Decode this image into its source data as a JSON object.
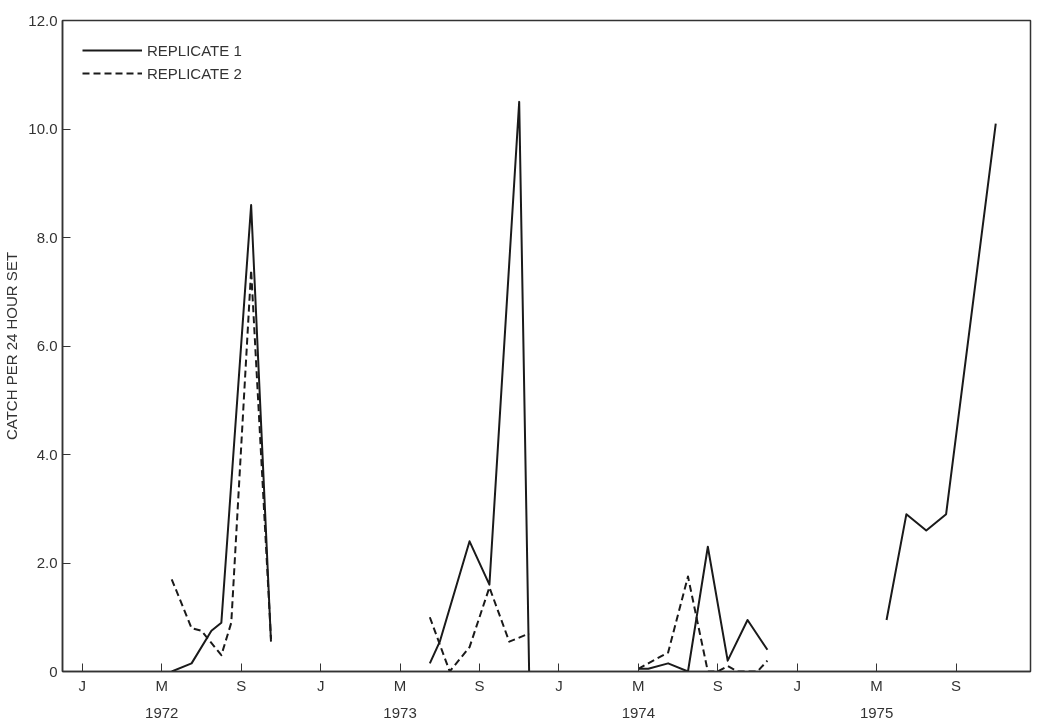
{
  "chart_data": {
    "type": "line",
    "ylabel": "CATCH PER 24 HOUR SET",
    "ylim": [
      0,
      12
    ],
    "categories": [
      "J",
      null,
      null,
      null,
      null,
      null,
      null,
      null,
      "M",
      null,
      null,
      null,
      null,
      null,
      null,
      null,
      "S",
      null,
      null,
      null,
      null,
      null,
      null,
      null,
      "J",
      null,
      null,
      null,
      null,
      null,
      null,
      null,
      "M",
      null,
      null,
      null,
      null,
      null,
      null,
      null,
      "S",
      null,
      null,
      null,
      null,
      null,
      null,
      null,
      "J",
      null,
      null,
      null,
      null,
      null,
      null,
      null,
      "M",
      null,
      null,
      null,
      null,
      null,
      null,
      null,
      "S",
      null,
      null,
      null,
      null,
      null,
      null,
      null,
      "J",
      null,
      null,
      null,
      null,
      null,
      null,
      null,
      "M",
      null,
      null,
      null,
      null,
      null,
      null,
      null,
      "S",
      null,
      null,
      null,
      null,
      null,
      null,
      null
    ],
    "yticks": [
      0,
      {
        "value": 2,
        "label": "2.0"
      },
      {
        "value": 4,
        "label": "4.0"
      },
      {
        "value": 6,
        "label": "6.0"
      },
      {
        "value": 8,
        "label": "8.0"
      },
      {
        "value": 10,
        "label": "10.0"
      },
      {
        "value": 12,
        "label": "12.0"
      }
    ],
    "annotations": [
      "1972",
      "1973",
      "1974",
      "1975"
    ],
    "grid": false,
    "legend": "top left",
    "series": [
      {
        "name": "REPLICATE 1",
        "color": "#1a1a1a",
        "line_style": "solid",
        "values": [
          null,
          null,
          null,
          null,
          null,
          null,
          null,
          null,
          null,
          0,
          null,
          0.15,
          null,
          0.75,
          0.9,
          null,
          null,
          8.6,
          null,
          0.55,
          null,
          null,
          null,
          null,
          null,
          null,
          null,
          null,
          null,
          null,
          null,
          null,
          null,
          null,
          null,
          null,
          null,
          null,
          null,
          null,
          null,
          null,
          null,
          null,
          null,
          null,
          null,
          null,
          null,
          null,
          null,
          null,
          null,
          null,
          null,
          null,
          null,
          null,
          null,
          null,
          null,
          null,
          null,
          null,
          null,
          null,
          null,
          null,
          null,
          null,
          null,
          null,
          null,
          null,
          null,
          null,
          null,
          null,
          null,
          null,
          null,
          null,
          null,
          null,
          null,
          null,
          null,
          null,
          null,
          null,
          null,
          null,
          null,
          null,
          null,
          null
        ]
      },
      {
        "color": "#1a1a1a",
        "line_style": "solid",
        "values": [
          null,
          null,
          null,
          null,
          null,
          null,
          null,
          null,
          null,
          null,
          null,
          null,
          null,
          null,
          null,
          null,
          null,
          null,
          null,
          null,
          null,
          null,
          null,
          null,
          null,
          null,
          null,
          null,
          null,
          null,
          null,
          null,
          null,
          null,
          null,
          0.15,
          0.55,
          null,
          null,
          2.4,
          null,
          1.6,
          null,
          null,
          10.5,
          0,
          null,
          null,
          null,
          null,
          null,
          null,
          null,
          null,
          null,
          null,
          null,
          null,
          null,
          null,
          null,
          null,
          null,
          null,
          null,
          null,
          null,
          null,
          null,
          null,
          null,
          null,
          null,
          null,
          null,
          null,
          null,
          null,
          null,
          null,
          null,
          null,
          null,
          null,
          null,
          null,
          null,
          null,
          null,
          null,
          null,
          null,
          null,
          null,
          null,
          null
        ]
      },
      {
        "color": "#1a1a1a",
        "line_style": "solid",
        "values": [
          null,
          null,
          null,
          null,
          null,
          null,
          null,
          null,
          null,
          null,
          null,
          null,
          null,
          null,
          null,
          null,
          null,
          null,
          null,
          null,
          null,
          null,
          null,
          null,
          null,
          null,
          null,
          null,
          null,
          null,
          null,
          null,
          null,
          null,
          null,
          null,
          null,
          null,
          null,
          null,
          null,
          null,
          null,
          null,
          null,
          null,
          null,
          null,
          null,
          null,
          null,
          null,
          null,
          null,
          null,
          null,
          0.05,
          0.05,
          null,
          0.15,
          null,
          0,
          null,
          2.3,
          null,
          0.2,
          null,
          0.95,
          null,
          0.4,
          null,
          null,
          null,
          null,
          null,
          null,
          null,
          null,
          null,
          null,
          null,
          null,
          null,
          null,
          null,
          null,
          null,
          null,
          null,
          null,
          null,
          null,
          null,
          null,
          null,
          null
        ]
      },
      {
        "color": "#1a1a1a",
        "line_style": "solid",
        "values": [
          null,
          null,
          null,
          null,
          null,
          null,
          null,
          null,
          null,
          null,
          null,
          null,
          null,
          null,
          null,
          null,
          null,
          null,
          null,
          null,
          null,
          null,
          null,
          null,
          null,
          null,
          null,
          null,
          null,
          null,
          null,
          null,
          null,
          null,
          null,
          null,
          null,
          null,
          null,
          null,
          null,
          null,
          null,
          null,
          null,
          null,
          null,
          null,
          null,
          null,
          null,
          null,
          null,
          null,
          null,
          null,
          null,
          null,
          null,
          null,
          null,
          null,
          null,
          null,
          null,
          null,
          null,
          null,
          null,
          null,
          null,
          null,
          null,
          null,
          null,
          null,
          null,
          null,
          null,
          null,
          null,
          0.95,
          null,
          2.9,
          null,
          2.6,
          null,
          2.9,
          null,
          null,
          null,
          null,
          10.1,
          null,
          null,
          null
        ]
      },
      {
        "name": "REPLICATE 2",
        "color": "#1a1a1a",
        "line_style": "dashed",
        "values": [
          null,
          null,
          null,
          null,
          null,
          null,
          null,
          null,
          null,
          1.7,
          null,
          0.8,
          0.75,
          null,
          0.3,
          0.9,
          null,
          7.4,
          null,
          0.6,
          null,
          null,
          null,
          null,
          null,
          null,
          null,
          null,
          null,
          null,
          null,
          null,
          null,
          null,
          null,
          null,
          null,
          null,
          null,
          null,
          null,
          null,
          null,
          null,
          null,
          null,
          null,
          null,
          null,
          null,
          null,
          null,
          null,
          null,
          null,
          null,
          null,
          null,
          null,
          null,
          null,
          null,
          null,
          null,
          null,
          null,
          null,
          null,
          null,
          null,
          null,
          null,
          null,
          null,
          null,
          null,
          null,
          null,
          null,
          null,
          null,
          null,
          null,
          null,
          null,
          null,
          null,
          null,
          null,
          null,
          null,
          null,
          null,
          null,
          null,
          null
        ]
      },
      {
        "color": "#1a1a1a",
        "line_style": "dashed",
        "values": [
          null,
          null,
          null,
          null,
          null,
          null,
          null,
          null,
          null,
          null,
          null,
          null,
          null,
          null,
          null,
          null,
          null,
          null,
          null,
          null,
          null,
          null,
          null,
          null,
          null,
          null,
          null,
          null,
          null,
          null,
          null,
          null,
          null,
          null,
          null,
          1.0,
          null,
          0,
          null,
          0.45,
          null,
          1.55,
          null,
          0.55,
          null,
          0.7,
          null,
          null,
          null,
          null,
          null,
          null,
          null,
          null,
          null,
          null,
          null,
          null,
          null,
          null,
          null,
          null,
          null,
          null,
          null,
          null,
          null,
          null,
          null,
          null,
          null,
          null,
          null,
          null,
          null,
          null,
          null,
          null,
          null,
          null,
          null,
          null,
          null,
          null,
          null,
          null,
          null,
          null,
          null,
          null,
          null,
          null,
          null,
          null,
          null,
          null
        ]
      },
      {
        "color": "#1a1a1a",
        "line_style": "dashed",
        "values": [
          null,
          null,
          null,
          null,
          null,
          null,
          null,
          null,
          null,
          null,
          null,
          null,
          null,
          null,
          null,
          null,
          null,
          null,
          null,
          null,
          null,
          null,
          null,
          null,
          null,
          null,
          null,
          null,
          null,
          null,
          null,
          null,
          null,
          null,
          null,
          null,
          null,
          null,
          null,
          null,
          null,
          null,
          null,
          null,
          null,
          null,
          null,
          null,
          null,
          null,
          null,
          null,
          null,
          null,
          null,
          null,
          0.05,
          0.15,
          null,
          0.35,
          null,
          1.75,
          null,
          0,
          0,
          0.1,
          0,
          null,
          0,
          0.2,
          null,
          null,
          null,
          null,
          null,
          null,
          null,
          null,
          null,
          null,
          null,
          null,
          null,
          null,
          null,
          null,
          null,
          null,
          null,
          null,
          null,
          null,
          null,
          null,
          null,
          null
        ]
      }
    ]
  }
}
